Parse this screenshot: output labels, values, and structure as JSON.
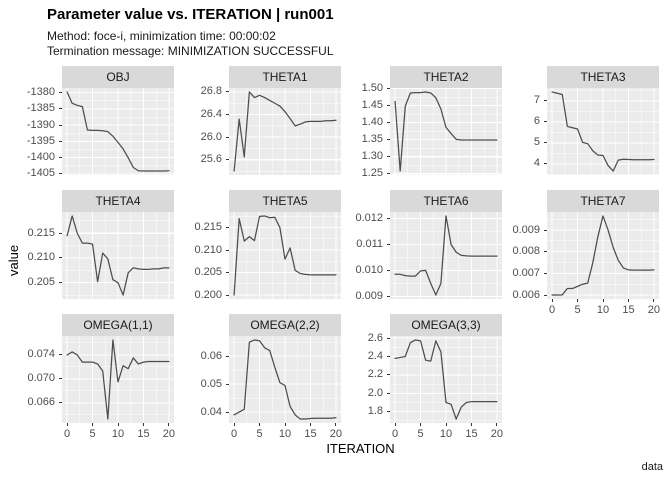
{
  "header": {
    "title": "Parameter value vs. ITERATION | run001",
    "subtitle_line1": "Method: foce-i, minimization time: 00:00:02",
    "subtitle_line2": "Termination message: MINIMIZATION SUCCESSFUL"
  },
  "axes": {
    "x_label": "ITERATION",
    "y_label": "value"
  },
  "caption": "data",
  "colors": {
    "panel_bg": "#EBEBEB",
    "strip_bg": "#D9D9D9",
    "grid_major": "#FFFFFF",
    "grid_minor": "#FFFFFF",
    "line": "#4D4D4D",
    "tick_mark": "#333333",
    "tick_label": "#4D4D4D"
  },
  "chart_data": {
    "type": "line",
    "title": "Parameter value vs. ITERATION | run001",
    "xlabel": "ITERATION",
    "ylabel": "value",
    "legend": "none",
    "grid": true,
    "x": [
      0,
      1,
      2,
      3,
      4,
      5,
      6,
      7,
      8,
      9,
      10,
      11,
      12,
      13,
      14,
      15,
      16,
      17,
      18,
      19,
      20
    ],
    "xlim": [
      -1,
      21
    ],
    "xticks": [
      0,
      5,
      10,
      15,
      20
    ],
    "xtick_labels": [
      "0",
      "5",
      "10",
      "15",
      "20"
    ],
    "x_minor": [
      2.5,
      7.5,
      12.5,
      17.5
    ],
    "facets": [
      {
        "name": "OBJ",
        "row": 0,
        "col": 0,
        "show_xaxis": false,
        "yticks": [
          -1405,
          -1400,
          -1395,
          -1390,
          -1385,
          -1380
        ],
        "ytick_labels": [
          "-1405",
          "-1400",
          "-1395",
          "-1390",
          "-1385",
          "-1380"
        ],
        "values": [
          -1379.8,
          -1383.3,
          -1383.9,
          -1384.3,
          -1391.5,
          -1391.6,
          -1391.6,
          -1391.7,
          -1392.0,
          -1393.4,
          -1395.3,
          -1397.3,
          -1400.0,
          -1403.0,
          -1404.0,
          -1404.1,
          -1404.1,
          -1404.1,
          -1404.1,
          -1404.1,
          -1404.0
        ]
      },
      {
        "name": "THETA1",
        "row": 0,
        "col": 1,
        "show_xaxis": false,
        "yticks": [
          25.6,
          26.0,
          26.4,
          26.8
        ],
        "ytick_labels": [
          "25.6",
          "26.0",
          "26.4",
          "26.8"
        ],
        "values": [
          25.4,
          26.32,
          25.65,
          26.8,
          26.7,
          26.74,
          26.7,
          26.65,
          26.6,
          26.55,
          26.45,
          26.33,
          26.2,
          26.23,
          26.27,
          26.28,
          26.28,
          26.28,
          26.29,
          26.29,
          26.3
        ]
      },
      {
        "name": "THETA2",
        "row": 0,
        "col": 2,
        "show_xaxis": false,
        "yticks": [
          1.25,
          1.3,
          1.35,
          1.4,
          1.45,
          1.5
        ],
        "ytick_labels": [
          "1.25",
          "1.30",
          "1.35",
          "1.40",
          "1.45",
          "1.50"
        ],
        "values": [
          1.462,
          1.258,
          1.448,
          1.487,
          1.488,
          1.488,
          1.49,
          1.487,
          1.473,
          1.44,
          1.386,
          1.368,
          1.351,
          1.349,
          1.349,
          1.349,
          1.349,
          1.349,
          1.349,
          1.349,
          1.349
        ]
      },
      {
        "name": "THETA3",
        "row": 0,
        "col": 3,
        "show_xaxis": false,
        "yticks": [
          4,
          5,
          6,
          7
        ],
        "ytick_labels": [
          "4",
          "5",
          "6",
          "7"
        ],
        "values": [
          7.42,
          7.36,
          7.3,
          5.78,
          5.72,
          5.66,
          5.02,
          4.96,
          4.62,
          4.42,
          4.4,
          3.92,
          3.66,
          4.18,
          4.22,
          4.21,
          4.2,
          4.2,
          4.2,
          4.2,
          4.21
        ]
      },
      {
        "name": "THETA4",
        "row": 1,
        "col": 0,
        "show_xaxis": false,
        "yticks": [
          0.205,
          0.21,
          0.215
        ],
        "ytick_labels": [
          "0.205",
          "0.210",
          "0.215"
        ],
        "values": [
          0.2145,
          0.2185,
          0.215,
          0.213,
          0.213,
          0.2128,
          0.2052,
          0.211,
          0.2098,
          0.2056,
          0.205,
          0.2025,
          0.207,
          0.208,
          0.2078,
          0.2077,
          0.2077,
          0.2078,
          0.2078,
          0.208,
          0.208
        ]
      },
      {
        "name": "THETA5",
        "row": 1,
        "col": 1,
        "show_xaxis": false,
        "yticks": [
          0.2,
          0.205,
          0.21,
          0.215
        ],
        "ytick_labels": [
          "0.200",
          "0.205",
          "0.210",
          "0.215"
        ],
        "values": [
          0.2,
          0.217,
          0.212,
          0.213,
          0.2121,
          0.2175,
          0.2176,
          0.2172,
          0.2173,
          0.215,
          0.208,
          0.2105,
          0.2055,
          0.2048,
          0.2046,
          0.2045,
          0.2045,
          0.2045,
          0.2045,
          0.2045,
          0.2045
        ]
      },
      {
        "name": "THETA6",
        "row": 1,
        "col": 2,
        "show_xaxis": false,
        "yticks": [
          0.009,
          0.01,
          0.011,
          0.012
        ],
        "ytick_labels": [
          "0.009",
          "0.010",
          "0.011",
          "0.012"
        ],
        "values": [
          0.00985,
          0.00985,
          0.0098,
          0.00978,
          0.00978,
          0.00998,
          0.01,
          0.0095,
          0.00905,
          0.0095,
          0.0121,
          0.011,
          0.0107,
          0.01058,
          0.01056,
          0.01055,
          0.01055,
          0.01055,
          0.01055,
          0.01055,
          0.01055
        ]
      },
      {
        "name": "THETA7",
        "row": 1,
        "col": 3,
        "show_xaxis": true,
        "yticks": [
          0.006,
          0.007,
          0.008,
          0.009
        ],
        "ytick_labels": [
          "0.006",
          "0.007",
          "0.008",
          "0.009"
        ],
        "values": [
          0.006,
          0.006,
          0.00601,
          0.0063,
          0.0063,
          0.0064,
          0.0065,
          0.00655,
          0.0075,
          0.0087,
          0.00965,
          0.009,
          0.0082,
          0.0076,
          0.00725,
          0.00716,
          0.00715,
          0.00715,
          0.00715,
          0.00715,
          0.00716
        ]
      },
      {
        "name": "OMEGA(1,1)",
        "row": 2,
        "col": 0,
        "show_xaxis": true,
        "yticks": [
          0.066,
          0.07,
          0.074
        ],
        "ytick_labels": [
          "0.066",
          "0.070",
          "0.074"
        ],
        "values": [
          0.074,
          0.0745,
          0.074,
          0.0728,
          0.0728,
          0.0728,
          0.0725,
          0.0713,
          0.0633,
          0.0765,
          0.0695,
          0.0722,
          0.0717,
          0.0735,
          0.0725,
          0.0728,
          0.0729,
          0.0729,
          0.0729,
          0.0729,
          0.0729
        ]
      },
      {
        "name": "OMEGA(2,2)",
        "row": 2,
        "col": 1,
        "show_xaxis": true,
        "yticks": [
          0.04,
          0.05,
          0.06
        ],
        "ytick_labels": [
          "0.04",
          "0.05",
          "0.06"
        ],
        "values": [
          0.039,
          0.04,
          0.041,
          0.065,
          0.0658,
          0.0655,
          0.063,
          0.062,
          0.056,
          0.0505,
          0.0495,
          0.042,
          0.039,
          0.0375,
          0.0375,
          0.0377,
          0.0378,
          0.0378,
          0.0378,
          0.0378,
          0.038
        ]
      },
      {
        "name": "OMEGA(3,3)",
        "row": 2,
        "col": 2,
        "show_xaxis": true,
        "yticks": [
          1.8,
          2.0,
          2.2,
          2.4,
          2.6
        ],
        "ytick_labels": [
          "1.8",
          "2.0",
          "2.2",
          "2.4",
          "2.6"
        ],
        "values": [
          2.38,
          2.39,
          2.4,
          2.55,
          2.58,
          2.57,
          2.36,
          2.35,
          2.57,
          2.45,
          1.9,
          1.88,
          1.72,
          1.85,
          1.9,
          1.91,
          1.91,
          1.91,
          1.91,
          1.91,
          1.91
        ]
      }
    ]
  }
}
